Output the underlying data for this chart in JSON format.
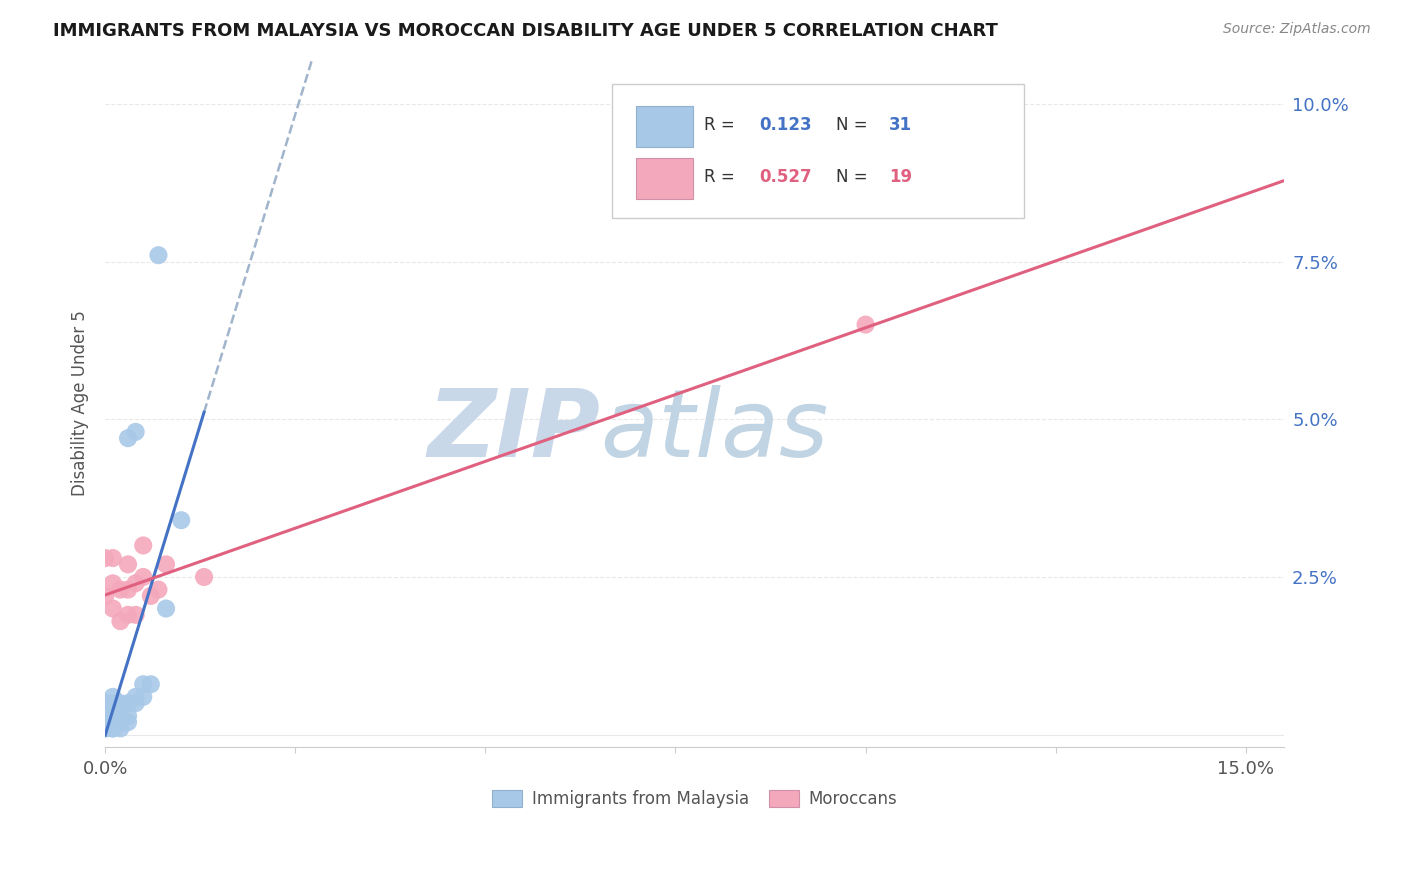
{
  "title": "IMMIGRANTS FROM MALAYSIA VS MOROCCAN DISABILITY AGE UNDER 5 CORRELATION CHART",
  "source": "Source: ZipAtlas.com",
  "ylabel": "Disability Age Under 5",
  "xlim": [
    0.0,
    0.155
  ],
  "ylim": [
    -0.002,
    0.107
  ],
  "malaysia_R": 0.123,
  "malaysia_N": 31,
  "moroccan_R": 0.527,
  "moroccan_N": 19,
  "malaysia_color": "#a8c8e8",
  "moroccan_color": "#f4a8bc",
  "malaysia_line_color": "#4472c4",
  "moroccan_line_color": "#e06080",
  "dash_line_color": "#a0b4cc",
  "background_color": "#ffffff",
  "watermark_zip": "ZIP",
  "watermark_atlas": "atlas",
  "watermark_color": "#c8d8e8",
  "malaysia_x": [
    0.0,
    0.0,
    0.0,
    0.0,
    0.0,
    0.0,
    0.001,
    0.001,
    0.001,
    0.001,
    0.001,
    0.001,
    0.001,
    0.002,
    0.002,
    0.002,
    0.002,
    0.002,
    0.003,
    0.003,
    0.003,
    0.003,
    0.004,
    0.004,
    0.004,
    0.005,
    0.005,
    0.006,
    0.007,
    0.008,
    0.01
  ],
  "malaysia_y": [
    0.001,
    0.001,
    0.002,
    0.003,
    0.004,
    0.005,
    0.001,
    0.001,
    0.002,
    0.003,
    0.004,
    0.005,
    0.006,
    0.001,
    0.002,
    0.003,
    0.004,
    0.005,
    0.002,
    0.003,
    0.005,
    0.047,
    0.005,
    0.006,
    0.048,
    0.006,
    0.008,
    0.008,
    0.076,
    0.02,
    0.034
  ],
  "moroccan_x": [
    0.0,
    0.0,
    0.001,
    0.001,
    0.001,
    0.002,
    0.002,
    0.003,
    0.003,
    0.003,
    0.004,
    0.004,
    0.005,
    0.005,
    0.006,
    0.007,
    0.008,
    0.013,
    0.1
  ],
  "moroccan_y": [
    0.022,
    0.028,
    0.02,
    0.024,
    0.028,
    0.018,
    0.023,
    0.019,
    0.023,
    0.027,
    0.019,
    0.024,
    0.025,
    0.03,
    0.022,
    0.023,
    0.027,
    0.025,
    0.065
  ],
  "xtick_positions": [
    0.0,
    0.025,
    0.05,
    0.075,
    0.1,
    0.125,
    0.15
  ],
  "xtick_labels": [
    "0.0%",
    "",
    "",
    "",
    "",
    "",
    "15.0%"
  ],
  "ytick_positions": [
    0.0,
    0.025,
    0.05,
    0.075,
    0.1
  ],
  "ytick_labels_right": [
    "",
    "2.5%",
    "5.0%",
    "7.5%",
    "10.0%"
  ],
  "grid_color": "#e8e8e8",
  "legend_malaysia_label": "R =  0.123   N = 31",
  "legend_moroccan_label": "R =  0.527   N = 19"
}
